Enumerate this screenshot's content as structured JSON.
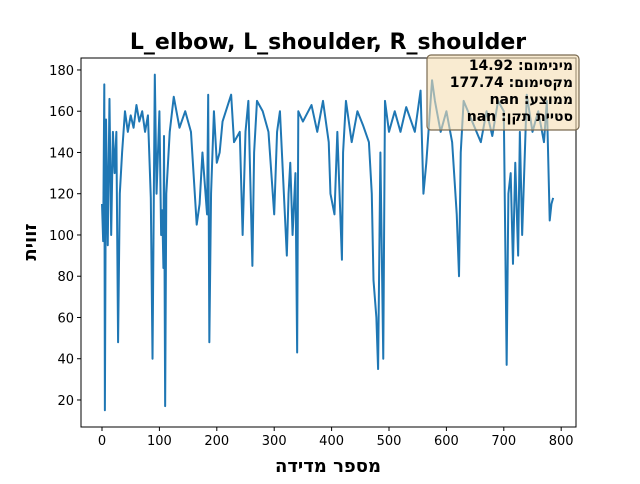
{
  "chart_data": {
    "type": "line",
    "title": "L_elbow, L_shoulder, R_shoulder",
    "x_label": "מספר מדידה",
    "y_label": "זווית",
    "annotations": [
      "מינימום: 14.92",
      "מקסימום: 177.74",
      "ממוצע: nan",
      "סטיית תקן: nan"
    ],
    "color": "#1f77b4",
    "xlim": [
      -36.6,
      825.8
    ],
    "xticks": [
      0,
      100,
      200,
      300,
      400,
      500,
      600,
      700,
      800
    ],
    "ylim": [
      6.9,
      185.8
    ],
    "yticks": [
      20,
      40,
      60,
      80,
      100,
      120,
      140,
      160,
      180
    ],
    "x": [
      0,
      2,
      4,
      5,
      7,
      10,
      13,
      16,
      19,
      22,
      25,
      28,
      31,
      35,
      40,
      45,
      50,
      55,
      60,
      65,
      70,
      75,
      80,
      85,
      88,
      92,
      95,
      100,
      103,
      105,
      107,
      108,
      110,
      112,
      118,
      125,
      135,
      145,
      155,
      165,
      170,
      175,
      183,
      185,
      187,
      190,
      195,
      200,
      205,
      210,
      225,
      230,
      240,
      245,
      250,
      255,
      262,
      265,
      270,
      280,
      290,
      300,
      305,
      310,
      322,
      325,
      328,
      332,
      337,
      340,
      342,
      350,
      365,
      375,
      385,
      395,
      398,
      405,
      410,
      418,
      420,
      425,
      435,
      445,
      455,
      465,
      470,
      473,
      478,
      481,
      485,
      490,
      493,
      500,
      510,
      520,
      530,
      545,
      555,
      560,
      565,
      570,
      575,
      580,
      590,
      600,
      610,
      618,
      622,
      625,
      630,
      645,
      660,
      670,
      680,
      690,
      700,
      705,
      708,
      712,
      716,
      720,
      725,
      728,
      732,
      740,
      750,
      760,
      770,
      775,
      780,
      783,
      786
    ],
    "values": [
      115,
      97,
      173,
      15,
      156,
      95,
      166,
      100,
      150,
      130,
      150,
      48,
      120,
      140,
      160,
      150,
      158,
      152,
      163,
      155,
      160,
      150,
      158,
      118,
      40,
      177.74,
      120,
      160,
      100,
      112,
      84,
      148,
      17,
      120,
      150,
      167,
      152,
      160,
      150,
      105,
      115,
      140,
      110,
      168,
      48,
      120,
      160,
      135,
      140,
      155,
      168,
      145,
      150,
      100,
      150,
      165,
      85,
      140,
      165,
      160,
      150,
      110,
      150,
      160,
      90,
      120,
      135,
      100,
      130,
      43,
      160,
      155,
      163,
      150,
      165,
      145,
      120,
      110,
      150,
      88,
      140,
      165,
      145,
      160,
      153,
      145,
      120,
      78,
      60,
      35,
      140,
      40,
      165,
      150,
      160,
      150,
      162,
      150,
      170,
      120,
      135,
      155,
      175,
      165,
      150,
      160,
      145,
      110,
      80,
      140,
      165,
      155,
      145,
      160,
      148,
      165,
      160,
      37,
      120,
      130,
      86,
      135,
      90,
      150,
      100,
      168,
      150,
      160,
      145,
      165,
      107,
      115,
      118
    ]
  }
}
